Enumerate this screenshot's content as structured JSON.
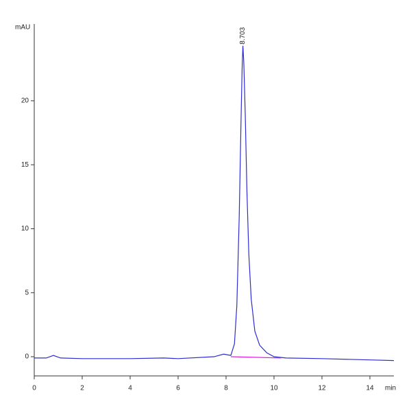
{
  "chart_data": {
    "type": "line",
    "x_label": "min",
    "y_label": "mAU",
    "xlim": [
      0,
      15
    ],
    "ylim": [
      -1.5,
      26
    ],
    "xticks": [
      0,
      2,
      4,
      6,
      8,
      10,
      12,
      14
    ],
    "yticks": [
      0,
      5,
      10,
      15,
      20
    ],
    "series": [
      {
        "name": "signal",
        "color": "#2c2cd0",
        "x": [
          0,
          0.5,
          0.8,
          1.1,
          2,
          4,
          5.4,
          6,
          7.5,
          7.9,
          8.2,
          8.35,
          8.45,
          8.55,
          8.62,
          8.67,
          8.703,
          8.74,
          8.8,
          8.87,
          8.95,
          9.05,
          9.2,
          9.4,
          9.7,
          10,
          10.5,
          12,
          14,
          15
        ],
        "values": [
          -0.1,
          -0.1,
          0.1,
          -0.1,
          -0.15,
          -0.15,
          -0.1,
          -0.15,
          0,
          0.2,
          0.1,
          1,
          4,
          11,
          18,
          22.5,
          24.3,
          23,
          19,
          13,
          8,
          4.5,
          2,
          0.9,
          0.3,
          0,
          -0.1,
          -0.15,
          -0.25,
          -0.3
        ]
      },
      {
        "name": "baseline",
        "color": "#e020e0",
        "x": [
          8.2,
          10.3
        ],
        "values": [
          0,
          -0.1
        ]
      }
    ],
    "annotations": [
      {
        "text": "8.703",
        "x": 8.703,
        "y": 24.3
      }
    ]
  }
}
